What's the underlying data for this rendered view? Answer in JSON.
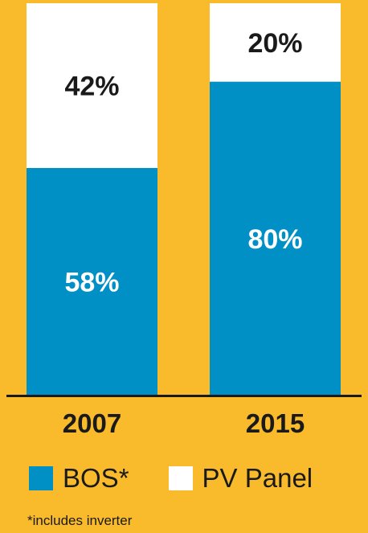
{
  "chart_data": {
    "type": "bar",
    "stacked": true,
    "percent_stacked": true,
    "categories": [
      "2007",
      "2015"
    ],
    "series": [
      {
        "name": "BOS*",
        "values": [
          58,
          80
        ],
        "labels": [
          "58%",
          "80%"
        ],
        "color": "#0090C6",
        "label_color": "#FFFFFF"
      },
      {
        "name": "PV Panel",
        "values": [
          42,
          20
        ],
        "labels": [
          "42%",
          "20%"
        ],
        "color": "#FFFFFF",
        "label_color": "#1a1a1a"
      }
    ],
    "ylim": [
      0,
      100
    ],
    "grid": false,
    "legend_position": "bottom",
    "footnote": "*includes inverter"
  }
}
